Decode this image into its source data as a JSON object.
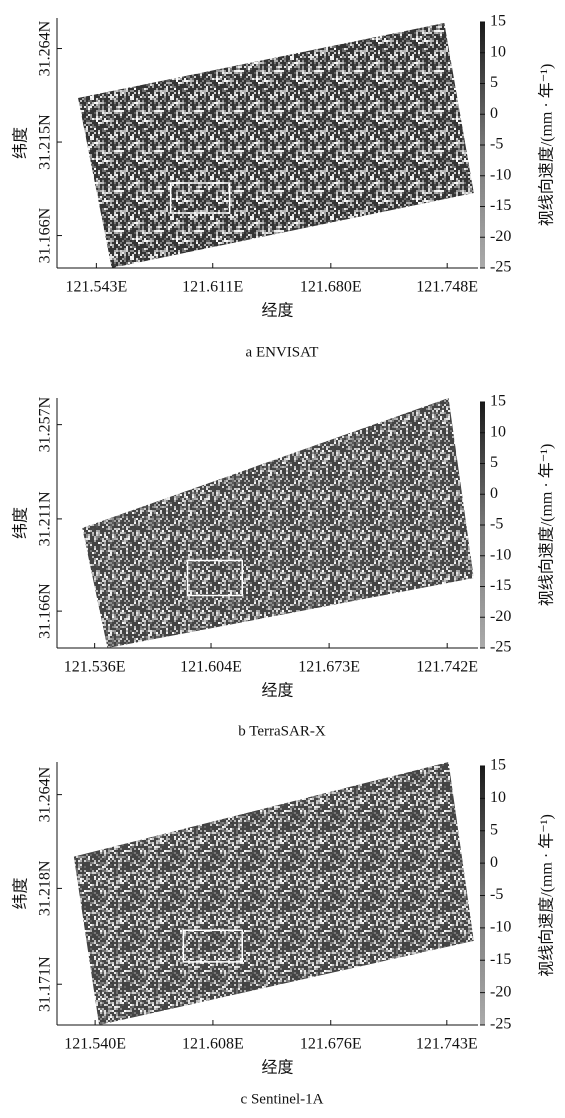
{
  "chart_data": [
    {
      "type": "image",
      "xlabel": "经度",
      "ylabel": "纬度",
      "colorbar_label": "视线向速度/(mm · 年⁻¹)",
      "caption": "a ENVISAT",
      "xlim": [
        121.52,
        121.766
      ],
      "xticks": [
        {
          "value": 121.543,
          "label": "121.543E"
        },
        {
          "value": 121.611,
          "label": "121.611E"
        },
        {
          "value": 121.68,
          "label": "121.680E"
        },
        {
          "value": 121.748,
          "label": "121.748E"
        }
      ],
      "ylim": [
        31.149,
        31.28
      ],
      "yticks": [
        {
          "value": 31.264,
          "label": "31.264N"
        },
        {
          "value": 31.215,
          "label": "31.215N"
        },
        {
          "value": 31.166,
          "label": "31.166N"
        }
      ],
      "clim": [
        -25,
        15
      ],
      "cticks": [
        15,
        10,
        5,
        0,
        -5,
        -10,
        -15,
        -20,
        -25
      ]
    },
    {
      "type": "image",
      "xlabel": "经度",
      "ylabel": "纬度",
      "colorbar_label": "视线向速度/(mm · 年⁻¹)",
      "caption": "b TerraSAR-X",
      "xlim": [
        121.514,
        121.76
      ],
      "xticks": [
        {
          "value": 121.536,
          "label": "121.536E"
        },
        {
          "value": 121.604,
          "label": "121.604E"
        },
        {
          "value": 121.673,
          "label": "121.673E"
        },
        {
          "value": 121.742,
          "label": "121.742E"
        }
      ],
      "ylim": [
        31.148,
        31.27
      ],
      "yticks": [
        {
          "value": 31.257,
          "label": "31.257N"
        },
        {
          "value": 31.211,
          "label": "31.211N"
        },
        {
          "value": 31.166,
          "label": "31.166N"
        }
      ],
      "clim": [
        -25,
        15
      ],
      "cticks": [
        15,
        10,
        5,
        0,
        -5,
        -10,
        -15,
        -20,
        -25
      ]
    },
    {
      "type": "image",
      "xlabel": "经度",
      "ylabel": "纬度",
      "colorbar_label": "视线向速度/(mm · 年⁻¹)",
      "caption": "c Sentinel-1A",
      "xlim": [
        121.518,
        121.761
      ],
      "xticks": [
        {
          "value": 121.54,
          "label": "121.540E"
        },
        {
          "value": 121.608,
          "label": "121.608E"
        },
        {
          "value": 121.676,
          "label": "121.676E"
        },
        {
          "value": 121.743,
          "label": "121.743E"
        }
      ],
      "ylim": [
        31.151,
        31.28
      ],
      "yticks": [
        {
          "value": 31.264,
          "label": "31.264N"
        },
        {
          "value": 31.218,
          "label": "31.218N"
        },
        {
          "value": 31.171,
          "label": "31.171N"
        }
      ],
      "clim": [
        -25,
        15
      ],
      "cticks": [
        15,
        10,
        5,
        0,
        -5,
        -10,
        -15,
        -20,
        -25
      ]
    }
  ]
}
